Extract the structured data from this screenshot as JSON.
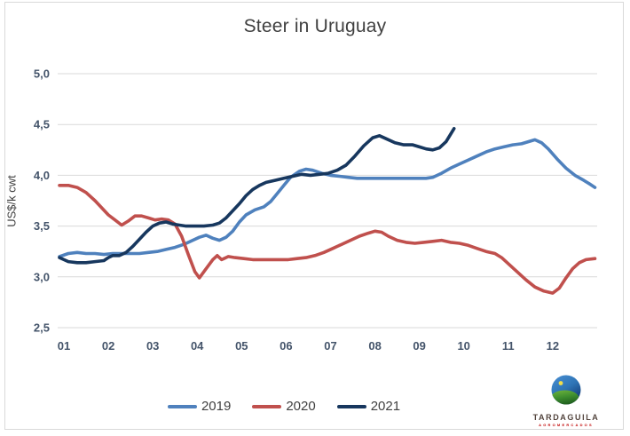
{
  "chart_data": {
    "type": "line",
    "title": "Steer in Uruguay",
    "xlabel": "",
    "ylabel": "US$/k cwt",
    "x_tick_labels": [
      "01",
      "02",
      "03",
      "04",
      "05",
      "06",
      "07",
      "08",
      "09",
      "10",
      "11",
      "12"
    ],
    "y_tick_values": [
      5.0,
      4.5,
      4.0,
      3.5,
      3.0,
      2.5
    ],
    "y_tick_labels": [
      "5,0",
      "4,5",
      "4,0",
      "3,5",
      "3,0",
      "2,5"
    ],
    "ylim": [
      2.5,
      5.0
    ],
    "xlim_months": [
      0.85,
      13.0
    ],
    "grid": "horizontal",
    "legend_position": "bottom",
    "units_note": "x in fractional months (01=Jan..12=Dec), weekly price points",
    "series": [
      {
        "name": "2019",
        "color": "#4F81BD",
        "points": [
          [
            0.9,
            3.2
          ],
          [
            1.1,
            3.23
          ],
          [
            1.3,
            3.24
          ],
          [
            1.5,
            3.23
          ],
          [
            1.7,
            3.23
          ],
          [
            1.9,
            3.22
          ],
          [
            2.1,
            3.23
          ],
          [
            2.3,
            3.23
          ],
          [
            2.5,
            3.23
          ],
          [
            2.7,
            3.23
          ],
          [
            2.9,
            3.24
          ],
          [
            3.1,
            3.25
          ],
          [
            3.3,
            3.27
          ],
          [
            3.5,
            3.29
          ],
          [
            3.7,
            3.32
          ],
          [
            3.9,
            3.36
          ],
          [
            4.05,
            3.39
          ],
          [
            4.2,
            3.41
          ],
          [
            4.35,
            3.38
          ],
          [
            4.5,
            3.36
          ],
          [
            4.65,
            3.39
          ],
          [
            4.8,
            3.45
          ],
          [
            4.95,
            3.54
          ],
          [
            5.1,
            3.61
          ],
          [
            5.3,
            3.66
          ],
          [
            5.5,
            3.69
          ],
          [
            5.65,
            3.74
          ],
          [
            5.8,
            3.82
          ],
          [
            5.95,
            3.9
          ],
          [
            6.1,
            3.98
          ],
          [
            6.3,
            4.04
          ],
          [
            6.45,
            4.06
          ],
          [
            6.6,
            4.05
          ],
          [
            6.8,
            4.02
          ],
          [
            7.0,
            4.0
          ],
          [
            7.2,
            3.99
          ],
          [
            7.4,
            3.98
          ],
          [
            7.6,
            3.97
          ],
          [
            7.8,
            3.97
          ],
          [
            8.0,
            3.97
          ],
          [
            8.2,
            3.97
          ],
          [
            8.4,
            3.97
          ],
          [
            8.6,
            3.97
          ],
          [
            8.8,
            3.97
          ],
          [
            9.0,
            3.97
          ],
          [
            9.15,
            3.97
          ],
          [
            9.3,
            3.98
          ],
          [
            9.5,
            4.02
          ],
          [
            9.7,
            4.07
          ],
          [
            9.9,
            4.11
          ],
          [
            10.1,
            4.15
          ],
          [
            10.3,
            4.19
          ],
          [
            10.5,
            4.23
          ],
          [
            10.7,
            4.26
          ],
          [
            10.9,
            4.28
          ],
          [
            11.1,
            4.3
          ],
          [
            11.3,
            4.31
          ],
          [
            11.45,
            4.33
          ],
          [
            11.6,
            4.35
          ],
          [
            11.75,
            4.32
          ],
          [
            11.9,
            4.26
          ],
          [
            12.1,
            4.16
          ],
          [
            12.3,
            4.07
          ],
          [
            12.5,
            4.0
          ],
          [
            12.7,
            3.95
          ],
          [
            12.85,
            3.91
          ],
          [
            12.95,
            3.88
          ]
        ]
      },
      {
        "name": "2020",
        "color": "#C0504D",
        "points": [
          [
            0.9,
            3.9
          ],
          [
            1.1,
            3.9
          ],
          [
            1.3,
            3.88
          ],
          [
            1.5,
            3.83
          ],
          [
            1.7,
            3.75
          ],
          [
            1.85,
            3.68
          ],
          [
            2.0,
            3.61
          ],
          [
            2.15,
            3.56
          ],
          [
            2.3,
            3.51
          ],
          [
            2.45,
            3.55
          ],
          [
            2.6,
            3.6
          ],
          [
            2.75,
            3.6
          ],
          [
            2.9,
            3.58
          ],
          [
            3.05,
            3.56
          ],
          [
            3.2,
            3.57
          ],
          [
            3.35,
            3.56
          ],
          [
            3.5,
            3.52
          ],
          [
            3.65,
            3.4
          ],
          [
            3.8,
            3.22
          ],
          [
            3.95,
            3.05
          ],
          [
            4.05,
            2.99
          ],
          [
            4.2,
            3.08
          ],
          [
            4.35,
            3.17
          ],
          [
            4.45,
            3.21
          ],
          [
            4.55,
            3.17
          ],
          [
            4.7,
            3.2
          ],
          [
            4.85,
            3.19
          ],
          [
            5.05,
            3.18
          ],
          [
            5.25,
            3.17
          ],
          [
            5.45,
            3.17
          ],
          [
            5.65,
            3.17
          ],
          [
            5.85,
            3.17
          ],
          [
            6.05,
            3.17
          ],
          [
            6.25,
            3.18
          ],
          [
            6.45,
            3.19
          ],
          [
            6.65,
            3.21
          ],
          [
            6.85,
            3.24
          ],
          [
            7.05,
            3.28
          ],
          [
            7.25,
            3.32
          ],
          [
            7.45,
            3.36
          ],
          [
            7.65,
            3.4
          ],
          [
            7.85,
            3.43
          ],
          [
            8.0,
            3.45
          ],
          [
            8.15,
            3.44
          ],
          [
            8.3,
            3.4
          ],
          [
            8.5,
            3.36
          ],
          [
            8.7,
            3.34
          ],
          [
            8.9,
            3.33
          ],
          [
            9.1,
            3.34
          ],
          [
            9.3,
            3.35
          ],
          [
            9.5,
            3.36
          ],
          [
            9.7,
            3.34
          ],
          [
            9.9,
            3.33
          ],
          [
            10.1,
            3.31
          ],
          [
            10.3,
            3.28
          ],
          [
            10.5,
            3.25
          ],
          [
            10.7,
            3.23
          ],
          [
            10.85,
            3.19
          ],
          [
            11.0,
            3.13
          ],
          [
            11.2,
            3.05
          ],
          [
            11.4,
            2.97
          ],
          [
            11.6,
            2.9
          ],
          [
            11.8,
            2.86
          ],
          [
            12.0,
            2.84
          ],
          [
            12.15,
            2.89
          ],
          [
            12.3,
            2.99
          ],
          [
            12.45,
            3.08
          ],
          [
            12.6,
            3.14
          ],
          [
            12.75,
            3.17
          ],
          [
            12.95,
            3.18
          ]
        ]
      },
      {
        "name": "2021",
        "color": "#17375E",
        "points": [
          [
            0.9,
            3.19
          ],
          [
            1.1,
            3.15
          ],
          [
            1.3,
            3.14
          ],
          [
            1.5,
            3.14
          ],
          [
            1.7,
            3.15
          ],
          [
            1.9,
            3.16
          ],
          [
            2.0,
            3.19
          ],
          [
            2.1,
            3.21
          ],
          [
            2.25,
            3.21
          ],
          [
            2.4,
            3.24
          ],
          [
            2.55,
            3.3
          ],
          [
            2.7,
            3.37
          ],
          [
            2.85,
            3.44
          ],
          [
            3.0,
            3.5
          ],
          [
            3.15,
            3.53
          ],
          [
            3.3,
            3.54
          ],
          [
            3.45,
            3.52
          ],
          [
            3.6,
            3.51
          ],
          [
            3.75,
            3.5
          ],
          [
            3.95,
            3.5
          ],
          [
            4.15,
            3.5
          ],
          [
            4.35,
            3.51
          ],
          [
            4.5,
            3.53
          ],
          [
            4.65,
            3.58
          ],
          [
            4.8,
            3.65
          ],
          [
            4.95,
            3.72
          ],
          [
            5.1,
            3.8
          ],
          [
            5.25,
            3.86
          ],
          [
            5.4,
            3.9
          ],
          [
            5.55,
            3.93
          ],
          [
            5.75,
            3.95
          ],
          [
            5.95,
            3.97
          ],
          [
            6.15,
            3.99
          ],
          [
            6.35,
            4.01
          ],
          [
            6.55,
            4.0
          ],
          [
            6.75,
            4.01
          ],
          [
            6.95,
            4.02
          ],
          [
            7.15,
            4.05
          ],
          [
            7.35,
            4.1
          ],
          [
            7.55,
            4.19
          ],
          [
            7.75,
            4.29
          ],
          [
            7.95,
            4.37
          ],
          [
            8.1,
            4.39
          ],
          [
            8.25,
            4.36
          ],
          [
            8.45,
            4.32
          ],
          [
            8.65,
            4.3
          ],
          [
            8.85,
            4.3
          ],
          [
            9.0,
            4.28
          ],
          [
            9.15,
            4.26
          ],
          [
            9.3,
            4.25
          ],
          [
            9.45,
            4.27
          ],
          [
            9.6,
            4.33
          ],
          [
            9.78,
            4.46
          ]
        ]
      }
    ]
  },
  "legend": {
    "items": [
      "2019",
      "2020",
      "2021"
    ]
  },
  "branding": {
    "name": "TARDAGUILA",
    "subtext": "AGROMERCADOS"
  },
  "colors": {
    "grid": "#D9D9D9",
    "frame_border": "#D9D9D9",
    "title_text": "#404040",
    "axis_text": "#44546A",
    "series_2019": "#4F81BD",
    "series_2020": "#C0504D",
    "series_2021": "#17375E",
    "logo_sky_blue": "#2E74B5",
    "logo_hill_green": "#3F8F2F",
    "logo_sun_yellow": "#F2DE4A"
  }
}
